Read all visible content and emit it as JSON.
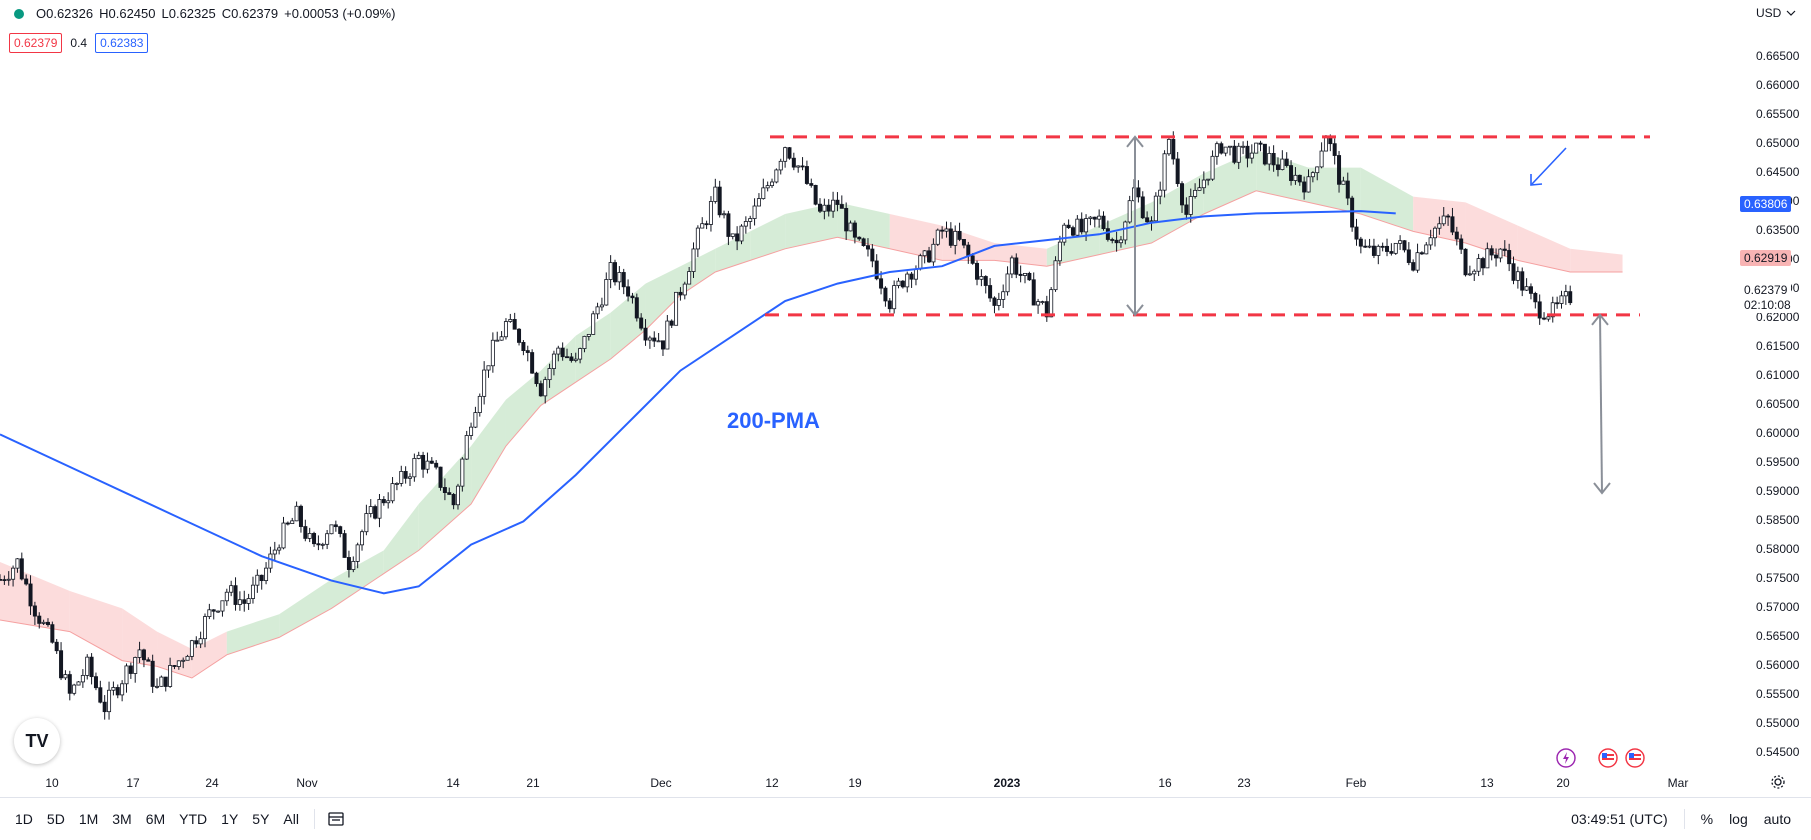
{
  "legend": {
    "open": "O0.62326",
    "high": "H0.62450",
    "low": "L0.62325",
    "close": "C0.62379",
    "change": "+0.00053 (+0.09%)"
  },
  "indicator_row": {
    "value1": "0.62379",
    "step": "0.4",
    "value2": "0.62383"
  },
  "currency": "USD",
  "annotation": "200-PMA",
  "price_ticks": [
    "0.66500",
    "0.66000",
    "0.65500",
    "0.65000",
    "0.64500",
    "0.64000",
    "0.63500",
    "0.63000",
    "0.62500",
    "0.62000",
    "0.61500",
    "0.61000",
    "0.60500",
    "0.60000",
    "0.59500",
    "0.59000",
    "0.58500",
    "0.58000",
    "0.57500",
    "0.57000",
    "0.56500",
    "0.56000",
    "0.55500",
    "0.55000",
    "0.54500"
  ],
  "price_tags": {
    "ma": "0.63806",
    "cloud": "0.62919",
    "last": "0.62379",
    "countdown": "02:10:08"
  },
  "time_labels": [
    "10",
    "17",
    "24",
    "Nov",
    "14",
    "21",
    "Dec",
    "12",
    "19",
    "2023",
    "16",
    "23",
    "Feb",
    "13",
    "20",
    "Mar"
  ],
  "toolbar": {
    "ranges": [
      "1D",
      "5D",
      "1M",
      "3M",
      "6M",
      "YTD",
      "1Y",
      "5Y",
      "All"
    ],
    "clock": "03:49:51 (UTC)",
    "percent": "%",
    "log": "log",
    "auto": "auto"
  },
  "colors": {
    "candle": "#131722",
    "ma": "#2962ff",
    "support_resistance": "#f23645",
    "cloud_bull": "#c8e6c9",
    "cloud_bear": "#fbd0d0",
    "arrow": "#8a8f98"
  },
  "chart_data": {
    "type": "candlestick",
    "instrument_quote": "USD",
    "y_range": [
      0.543,
      0.668
    ],
    "resistance": 0.6513,
    "support": 0.6206,
    "ma_200_last": 0.63806,
    "close_path": [
      [
        0,
        0.575
      ],
      [
        2,
        0.578
      ],
      [
        4,
        0.57
      ],
      [
        6,
        0.564
      ],
      [
        8,
        0.555
      ],
      [
        10,
        0.56
      ],
      [
        12,
        0.553
      ],
      [
        14,
        0.558
      ],
      [
        16,
        0.563
      ],
      [
        18,
        0.556
      ],
      [
        20,
        0.56
      ],
      [
        22,
        0.564
      ],
      [
        24,
        0.569
      ],
      [
        26,
        0.573
      ],
      [
        28,
        0.571
      ],
      [
        30,
        0.575
      ],
      [
        32,
        0.582
      ],
      [
        34,
        0.586
      ],
      [
        36,
        0.58
      ],
      [
        38,
        0.585
      ],
      [
        40,
        0.578
      ],
      [
        42,
        0.585
      ],
      [
        44,
        0.589
      ],
      [
        46,
        0.592
      ],
      [
        48,
        0.596
      ],
      [
        50,
        0.593
      ],
      [
        52,
        0.588
      ],
      [
        54,
        0.603
      ],
      [
        56,
        0.613
      ],
      [
        58,
        0.619
      ],
      [
        60,
        0.616
      ],
      [
        62,
        0.608
      ],
      [
        64,
        0.615
      ],
      [
        66,
        0.612
      ],
      [
        68,
        0.62
      ],
      [
        70,
        0.628
      ],
      [
        72,
        0.625
      ],
      [
        74,
        0.618
      ],
      [
        76,
        0.616
      ],
      [
        78,
        0.625
      ],
      [
        80,
        0.634
      ],
      [
        82,
        0.641
      ],
      [
        84,
        0.633
      ],
      [
        86,
        0.637
      ],
      [
        88,
        0.643
      ],
      [
        90,
        0.65
      ],
      [
        92,
        0.645
      ],
      [
        94,
        0.638
      ],
      [
        96,
        0.64
      ],
      [
        98,
        0.633
      ],
      [
        100,
        0.63
      ],
      [
        102,
        0.623
      ],
      [
        104,
        0.628
      ],
      [
        106,
        0.63
      ],
      [
        108,
        0.635
      ],
      [
        110,
        0.633
      ],
      [
        112,
        0.628
      ],
      [
        114,
        0.622
      ],
      [
        116,
        0.63
      ],
      [
        118,
        0.625
      ],
      [
        120,
        0.621
      ],
      [
        122,
        0.637
      ],
      [
        124,
        0.635
      ],
      [
        126,
        0.637
      ],
      [
        128,
        0.633
      ],
      [
        130,
        0.642
      ],
      [
        132,
        0.636
      ],
      [
        134,
        0.651
      ],
      [
        136,
        0.638
      ],
      [
        138,
        0.644
      ],
      [
        140,
        0.65
      ],
      [
        142,
        0.648
      ],
      [
        144,
        0.649
      ],
      [
        146,
        0.647
      ],
      [
        148,
        0.645
      ],
      [
        150,
        0.643
      ],
      [
        152,
        0.652
      ],
      [
        154,
        0.642
      ],
      [
        156,
        0.632
      ],
      [
        158,
        0.631
      ],
      [
        160,
        0.633
      ],
      [
        162,
        0.63
      ],
      [
        164,
        0.635
      ],
      [
        166,
        0.637
      ],
      [
        168,
        0.629
      ],
      [
        170,
        0.63
      ],
      [
        172,
        0.632
      ],
      [
        174,
        0.627
      ],
      [
        176,
        0.622
      ],
      [
        178,
        0.621
      ],
      [
        180,
        0.6238
      ]
    ],
    "ma_path": [
      [
        0,
        0.6
      ],
      [
        10,
        0.593
      ],
      [
        20,
        0.586
      ],
      [
        30,
        0.579
      ],
      [
        38,
        0.5748
      ],
      [
        44,
        0.5726
      ],
      [
        48,
        0.5738
      ],
      [
        54,
        0.581
      ],
      [
        60,
        0.585
      ],
      [
        66,
        0.593
      ],
      [
        72,
        0.602
      ],
      [
        78,
        0.611
      ],
      [
        84,
        0.617
      ],
      [
        90,
        0.623
      ],
      [
        96,
        0.626
      ],
      [
        102,
        0.628
      ],
      [
        108,
        0.629
      ],
      [
        114,
        0.6325
      ],
      [
        120,
        0.6335
      ],
      [
        126,
        0.6345
      ],
      [
        132,
        0.6365
      ],
      [
        138,
        0.6376
      ],
      [
        144,
        0.6381
      ],
      [
        150,
        0.6383
      ],
      [
        156,
        0.6385
      ],
      [
        160,
        0.6381
      ]
    ],
    "cloud_upper": [
      [
        0,
        0.578
      ],
      [
        8,
        0.573
      ],
      [
        14,
        0.57
      ],
      [
        18,
        0.566
      ],
      [
        22,
        0.563
      ],
      [
        26,
        0.566
      ],
      [
        32,
        0.569
      ],
      [
        38,
        0.575
      ],
      [
        44,
        0.58
      ],
      [
        48,
        0.588
      ],
      [
        54,
        0.598
      ],
      [
        58,
        0.606
      ],
      [
        62,
        0.611
      ],
      [
        66,
        0.617
      ],
      [
        70,
        0.621
      ],
      [
        74,
        0.626
      ],
      [
        78,
        0.629
      ],
      [
        82,
        0.632
      ],
      [
        86,
        0.635
      ],
      [
        90,
        0.638
      ],
      [
        96,
        0.64
      ],
      [
        102,
        0.638
      ],
      [
        108,
        0.636
      ],
      [
        114,
        0.633
      ],
      [
        120,
        0.632
      ],
      [
        126,
        0.636
      ],
      [
        132,
        0.64
      ],
      [
        138,
        0.645
      ],
      [
        144,
        0.649
      ],
      [
        150,
        0.646
      ],
      [
        156,
        0.646
      ],
      [
        162,
        0.641
      ],
      [
        168,
        0.64
      ],
      [
        174,
        0.636
      ],
      [
        180,
        0.632
      ],
      [
        186,
        0.631
      ]
    ],
    "cloud_lower": [
      [
        0,
        0.568
      ],
      [
        8,
        0.566
      ],
      [
        14,
        0.561
      ],
      [
        18,
        0.56
      ],
      [
        22,
        0.558
      ],
      [
        26,
        0.562
      ],
      [
        32,
        0.565
      ],
      [
        38,
        0.57
      ],
      [
        44,
        0.576
      ],
      [
        48,
        0.58
      ],
      [
        54,
        0.588
      ],
      [
        58,
        0.598
      ],
      [
        62,
        0.605
      ],
      [
        66,
        0.609
      ],
      [
        70,
        0.613
      ],
      [
        74,
        0.618
      ],
      [
        78,
        0.624
      ],
      [
        82,
        0.628
      ],
      [
        86,
        0.63
      ],
      [
        90,
        0.632
      ],
      [
        96,
        0.634
      ],
      [
        102,
        0.632
      ],
      [
        108,
        0.63
      ],
      [
        114,
        0.63
      ],
      [
        120,
        0.629
      ],
      [
        126,
        0.631
      ],
      [
        132,
        0.633
      ],
      [
        138,
        0.638
      ],
      [
        144,
        0.642
      ],
      [
        150,
        0.64
      ],
      [
        156,
        0.638
      ],
      [
        162,
        0.635
      ],
      [
        168,
        0.633
      ],
      [
        174,
        0.63
      ],
      [
        180,
        0.628
      ],
      [
        186,
        0.628
      ]
    ]
  }
}
